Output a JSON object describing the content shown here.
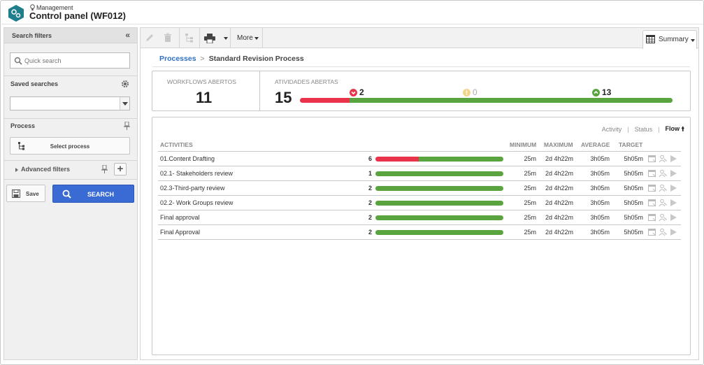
{
  "header": {
    "breadcrumb": "Management",
    "title": "Control panel (WF012)"
  },
  "left_panel": {
    "title": "Search filters",
    "quick_search_placeholder": "Quick search",
    "saved_searches_label": "Saved searches",
    "saved_searches_value": "",
    "process_label": "Process",
    "select_process_label": "Select process",
    "advanced_filters_label": "Advanced filters",
    "save_label": "Save",
    "search_label": "SEARCH"
  },
  "toolbar": {
    "more_label": "More",
    "summary_label": "Summary"
  },
  "breadcrumb": {
    "link": "Processes",
    "current": "Standard Revision Process"
  },
  "stats": {
    "workflows_label": "WORKFLOWS ABERTOS",
    "workflows_value": "11",
    "activities_label": "ATIVIDADES ABERTAS",
    "activities_value": "15",
    "late_count": "2",
    "warning_count": "0",
    "ontime_count": "13",
    "late_fraction": 0.133,
    "ontime_fraction": 0.867
  },
  "views": {
    "activity": "Activity",
    "status": "Status",
    "flow": "Flow"
  },
  "table": {
    "headers": {
      "activities": "ACTIVITIES",
      "minimum": "MINIMUM",
      "maximum": "MAXIMUM",
      "average": "AVERAGE",
      "target": "TARGET"
    },
    "rows": [
      {
        "name": "01.Content Drafting",
        "count": "6",
        "late_fraction": 0.34,
        "minimum": "25m",
        "maximum": "2d 4h22m",
        "average": "3h05m",
        "target": "5h05m"
      },
      {
        "name": "02.1- Stakeholders review",
        "count": "1",
        "late_fraction": 0,
        "minimum": "25m",
        "maximum": "2d 4h22m",
        "average": "3h05m",
        "target": "5h05m"
      },
      {
        "name": "02.3-Third-party review",
        "count": "2",
        "late_fraction": 0,
        "minimum": "25m",
        "maximum": "2d 4h22m",
        "average": "3h05m",
        "target": "5h05m"
      },
      {
        "name": "02.2- Work Groups review",
        "count": "2",
        "late_fraction": 0,
        "minimum": "25m",
        "maximum": "2d 4h22m",
        "average": "3h05m",
        "target": "5h05m"
      },
      {
        "name": "Final approval",
        "count": "2",
        "late_fraction": 0,
        "minimum": "25m",
        "maximum": "2d 4h22m",
        "average": "3h05m",
        "target": "5h05m"
      },
      {
        "name": "Final Approval",
        "count": "2",
        "late_fraction": 0,
        "minimum": "25m",
        "maximum": "2d 4h22m",
        "average": "3h05m",
        "target": "5h05m"
      }
    ]
  },
  "colors": {
    "late": "#e8334a",
    "ontime": "#5aa43f",
    "warning": "#f3d58a",
    "link": "#2f6fc4",
    "search_button": "#3a6ad4",
    "logo": "#1e7e8c"
  }
}
